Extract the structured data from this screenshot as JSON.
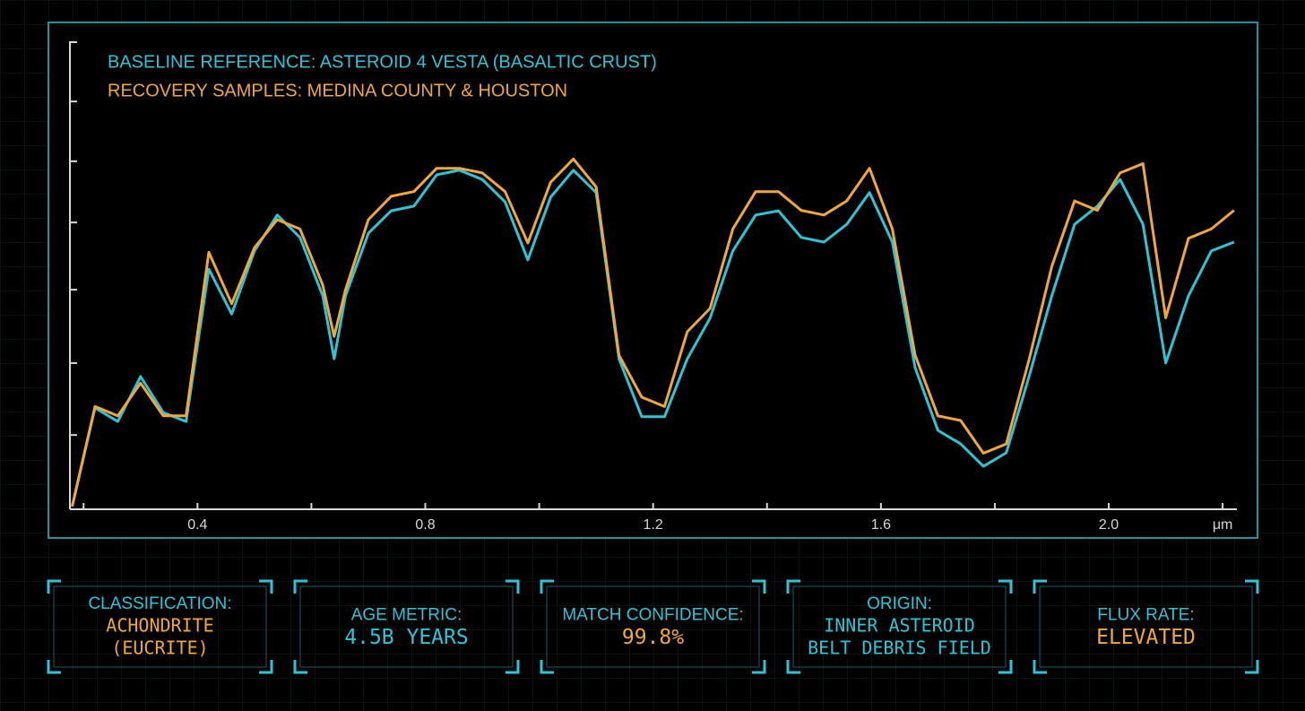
{
  "chart_data": {
    "type": "line",
    "series": [
      {
        "name": "BASELINE REFERENCE: ASTEROID 4 VESTA (BASALTIC CRUST)",
        "color": "#2ec4d6",
        "values": [
          0.006,
          0.217,
          0.188,
          0.284,
          0.207,
          0.188,
          0.514,
          0.418,
          0.553,
          0.63,
          0.582,
          0.457,
          0.322,
          0.457,
          0.591,
          0.639,
          0.649,
          0.716,
          0.726,
          0.706,
          0.658,
          0.534,
          0.668,
          0.726,
          0.678,
          0.322,
          0.198,
          0.198,
          0.322,
          0.409,
          0.553,
          0.63,
          0.639,
          0.582,
          0.572,
          0.61,
          0.678,
          0.572,
          0.303,
          0.169,
          0.14,
          0.092,
          0.121,
          0.284,
          0.457,
          0.61,
          0.649,
          0.706,
          0.61,
          0.313,
          0.457,
          0.553,
          0.572
        ]
      },
      {
        "name": "RECOVERY SAMPLES: MEDINA COUNTY & HOUSTON",
        "color": "#f0a83a",
        "values": [
          0.006,
          0.22,
          0.2,
          0.27,
          0.2,
          0.2,
          0.55,
          0.44,
          0.56,
          0.62,
          0.6,
          0.48,
          0.37,
          0.47,
          0.62,
          0.67,
          0.68,
          0.73,
          0.73,
          0.72,
          0.68,
          0.57,
          0.7,
          0.75,
          0.69,
          0.33,
          0.24,
          0.22,
          0.38,
          0.43,
          0.6,
          0.68,
          0.68,
          0.64,
          0.63,
          0.66,
          0.73,
          0.6,
          0.33,
          0.2,
          0.19,
          0.12,
          0.14,
          0.32,
          0.52,
          0.66,
          0.64,
          0.72,
          0.74,
          0.41,
          0.58,
          0.6,
          0.64
        ]
      }
    ],
    "x": [
      0.18,
      0.22,
      0.26,
      0.3,
      0.34,
      0.38,
      0.42,
      0.46,
      0.5,
      0.54,
      0.58,
      0.62,
      0.64,
      0.66,
      0.7,
      0.74,
      0.78,
      0.82,
      0.86,
      0.9,
      0.94,
      0.98,
      1.02,
      1.06,
      1.1,
      1.14,
      1.18,
      1.22,
      1.26,
      1.3,
      1.34,
      1.38,
      1.42,
      1.46,
      1.5,
      1.54,
      1.58,
      1.62,
      1.66,
      1.7,
      1.74,
      1.78,
      1.82,
      1.86,
      1.9,
      1.94,
      1.98,
      2.02,
      2.06,
      2.1,
      2.14,
      2.18,
      2.22
    ],
    "xlim": [
      0.176,
      2.225
    ],
    "xticks": [
      0.4,
      0.8,
      1.2,
      1.6,
      {
        "value": 2,
        "label": "2.0"
      },
      {
        "value": 2.2,
        "label": "μm"
      }
    ],
    "xminor_ticks": [
      0.2,
      0.6,
      1.0,
      1.4,
      1.8
    ],
    "ylim": [
      0,
      1
    ],
    "yminor_ticks": [
      0.159,
      0.313,
      0.47,
      0.614,
      0.745,
      0.873
    ]
  },
  "panels": [
    {
      "lines": [
        "CLASSIFICATION:",
        "ACHONDRITE",
        "(EUCRITE)"
      ],
      "color": "#f0a83a"
    },
    {
      "lines": [
        "AGE METRIC:",
        "4.5B YEARS"
      ],
      "color": "#2ec4d6"
    },
    {
      "lines": [
        "MATCH CONFIDENCE:",
        "99.8%"
      ],
      "color": "#f0a83a"
    },
    {
      "lines": [
        "ORIGIN:",
        "INNER ASTEROID",
        "BELT DEBRIS FIELD"
      ],
      "color": "#2ec4d6"
    },
    {
      "lines": [
        "FLUX RATE:",
        "ELEVATED"
      ],
      "color": "#f0a83a"
    }
  ]
}
